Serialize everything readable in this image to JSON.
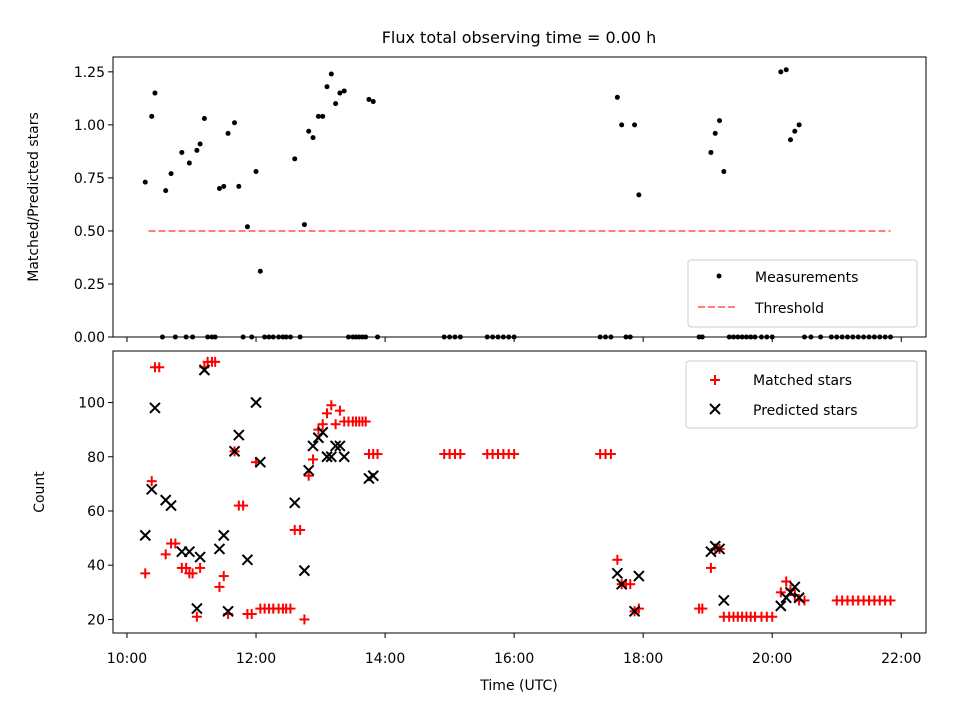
{
  "figure": {
    "title": "Flux total observing time = 0.00 h",
    "xlabel": "Time (UTC)",
    "x_tick_labels": [
      "10:00",
      "12:00",
      "14:00",
      "16:00",
      "18:00",
      "20:00",
      "22:00"
    ]
  },
  "colors": {
    "measurement": "#000000",
    "threshold": "#ff7f7f",
    "matched": "#ff0000",
    "predicted": "#000000"
  },
  "chart_data": [
    {
      "type": "scatter",
      "ylabel": "Matched/Predicted stars",
      "xlim": [
        "09:47",
        "22:23"
      ],
      "ylim": [
        0,
        1.32
      ],
      "y_ticks": [
        0.0,
        0.25,
        0.5,
        0.75,
        1.0,
        1.25
      ],
      "y_tick_labels": [
        "0.00",
        "0.25",
        "0.50",
        "0.75",
        "1.00",
        "1.25"
      ],
      "legend_position": "lower-right",
      "threshold": {
        "name": "Threshold",
        "y": 0.5,
        "x_from": "10:20",
        "x_to": "21:50"
      },
      "series": [
        {
          "name": "Measurements",
          "points": [
            [
              "10:17",
              0.73
            ],
            [
              "10:23",
              1.04
            ],
            [
              "10:26",
              1.15
            ],
            [
              "10:33",
              0.0
            ],
            [
              "10:36",
              0.69
            ],
            [
              "10:41",
              0.77
            ],
            [
              "10:45",
              0.0
            ],
            [
              "10:51",
              0.87
            ],
            [
              "10:55",
              0.0
            ],
            [
              "10:58",
              0.82
            ],
            [
              "11:01",
              0.0
            ],
            [
              "11:05",
              0.88
            ],
            [
              "11:08",
              0.91
            ],
            [
              "11:12",
              1.03
            ],
            [
              "11:15",
              0.0
            ],
            [
              "11:19",
              0.0
            ],
            [
              "11:22",
              0.0
            ],
            [
              "11:26",
              0.7
            ],
            [
              "11:30",
              0.71
            ],
            [
              "11:34",
              0.96
            ],
            [
              "11:40",
              1.01
            ],
            [
              "11:44",
              0.71
            ],
            [
              "11:48",
              0.0
            ],
            [
              "11:52",
              0.52
            ],
            [
              "11:56",
              0.0
            ],
            [
              "12:00",
              0.78
            ],
            [
              "12:04",
              0.31
            ],
            [
              "12:08",
              0.0
            ],
            [
              "12:12",
              0.0
            ],
            [
              "12:16",
              0.0
            ],
            [
              "12:21",
              0.0
            ],
            [
              "12:25",
              0.0
            ],
            [
              "12:28",
              0.0
            ],
            [
              "12:32",
              0.0
            ],
            [
              "12:36",
              0.84
            ],
            [
              "12:41",
              0.0
            ],
            [
              "12:45",
              0.53
            ],
            [
              "12:49",
              0.97
            ],
            [
              "12:53",
              0.94
            ],
            [
              "12:58",
              1.04
            ],
            [
              "13:02",
              1.04
            ],
            [
              "13:06",
              1.18
            ],
            [
              "13:10",
              1.24
            ],
            [
              "13:14",
              1.1
            ],
            [
              "13:18",
              1.15
            ],
            [
              "13:22",
              1.16
            ],
            [
              "13:26",
              0.0
            ],
            [
              "13:30",
              0.0
            ],
            [
              "13:33",
              0.0
            ],
            [
              "13:36",
              0.0
            ],
            [
              "13:39",
              0.0
            ],
            [
              "13:42",
              0.0
            ],
            [
              "13:45",
              1.12
            ],
            [
              "13:49",
              1.11
            ],
            [
              "13:53",
              0.0
            ],
            [
              "14:55",
              0.0
            ],
            [
              "15:00",
              0.0
            ],
            [
              "15:05",
              0.0
            ],
            [
              "15:10",
              0.0
            ],
            [
              "15:35",
              0.0
            ],
            [
              "15:40",
              0.0
            ],
            [
              "15:45",
              0.0
            ],
            [
              "15:50",
              0.0
            ],
            [
              "15:55",
              0.0
            ],
            [
              "16:00",
              0.0
            ],
            [
              "17:20",
              0.0
            ],
            [
              "17:25",
              0.0
            ],
            [
              "17:30",
              0.0
            ],
            [
              "17:36",
              1.13
            ],
            [
              "17:40",
              1.0
            ],
            [
              "17:44",
              0.0
            ],
            [
              "17:48",
              0.0
            ],
            [
              "17:52",
              1.0
            ],
            [
              "17:56",
              0.67
            ],
            [
              "18:52",
              0.0
            ],
            [
              "18:55",
              0.0
            ],
            [
              "19:03",
              0.87
            ],
            [
              "19:07",
              0.96
            ],
            [
              "19:11",
              1.02
            ],
            [
              "19:15",
              0.78
            ],
            [
              "19:20",
              0.0
            ],
            [
              "19:24",
              0.0
            ],
            [
              "19:28",
              0.0
            ],
            [
              "19:32",
              0.0
            ],
            [
              "19:36",
              0.0
            ],
            [
              "19:40",
              0.0
            ],
            [
              "19:44",
              0.0
            ],
            [
              "19:50",
              0.0
            ],
            [
              "19:55",
              0.0
            ],
            [
              "20:00",
              0.0
            ],
            [
              "20:08",
              1.25
            ],
            [
              "20:13",
              1.26
            ],
            [
              "20:17",
              0.93
            ],
            [
              "20:21",
              0.97
            ],
            [
              "20:25",
              1.0
            ],
            [
              "20:30",
              0.0
            ],
            [
              "20:36",
              0.0
            ],
            [
              "20:45",
              0.0
            ],
            [
              "20:55",
              0.0
            ],
            [
              "21:00",
              0.0
            ],
            [
              "21:05",
              0.0
            ],
            [
              "21:10",
              0.0
            ],
            [
              "21:15",
              0.0
            ],
            [
              "21:20",
              0.0
            ],
            [
              "21:25",
              0.0
            ],
            [
              "21:30",
              0.0
            ],
            [
              "21:35",
              0.0
            ],
            [
              "21:40",
              0.0
            ],
            [
              "21:45",
              0.0
            ],
            [
              "21:50",
              0.0
            ]
          ]
        }
      ]
    },
    {
      "type": "scatter",
      "ylabel": "Count",
      "xlim": [
        "09:47",
        "22:23"
      ],
      "ylim": [
        15,
        119
      ],
      "y_ticks": [
        20,
        40,
        60,
        80,
        100
      ],
      "y_tick_labels": [
        "20",
        "40",
        "60",
        "80",
        "100"
      ],
      "legend_position": "upper-right",
      "series": [
        {
          "name": "Matched stars",
          "marker": "plus",
          "points": [
            [
              "10:17",
              37
            ],
            [
              "10:23",
              71
            ],
            [
              "10:26",
              113
            ],
            [
              "10:30",
              113
            ],
            [
              "10:36",
              44
            ],
            [
              "10:41",
              48
            ],
            [
              "10:45",
              48
            ],
            [
              "10:51",
              39
            ],
            [
              "10:55",
              39
            ],
            [
              "10:58",
              37
            ],
            [
              "11:01",
              37
            ],
            [
              "11:05",
              21
            ],
            [
              "11:08",
              39
            ],
            [
              "11:12",
              113
            ],
            [
              "11:15",
              115
            ],
            [
              "11:19",
              115
            ],
            [
              "11:22",
              115
            ],
            [
              "11:26",
              32
            ],
            [
              "11:30",
              36
            ],
            [
              "11:34",
              22
            ],
            [
              "11:40",
              82
            ],
            [
              "11:44",
              62
            ],
            [
              "11:48",
              62
            ],
            [
              "11:52",
              22
            ],
            [
              "11:56",
              22
            ],
            [
              "12:00",
              78
            ],
            [
              "12:04",
              24
            ],
            [
              "12:08",
              24
            ],
            [
              "12:12",
              24
            ],
            [
              "12:16",
              24
            ],
            [
              "12:21",
              24
            ],
            [
              "12:25",
              24
            ],
            [
              "12:28",
              24
            ],
            [
              "12:32",
              24
            ],
            [
              "12:36",
              53
            ],
            [
              "12:41",
              53
            ],
            [
              "12:45",
              20
            ],
            [
              "12:49",
              73
            ],
            [
              "12:53",
              79
            ],
            [
              "12:58",
              90
            ],
            [
              "13:02",
              92
            ],
            [
              "13:06",
              96
            ],
            [
              "13:10",
              99
            ],
            [
              "13:14",
              92
            ],
            [
              "13:18",
              97
            ],
            [
              "13:22",
              93
            ],
            [
              "13:26",
              93
            ],
            [
              "13:30",
              93
            ],
            [
              "13:33",
              93
            ],
            [
              "13:36",
              93
            ],
            [
              "13:39",
              93
            ],
            [
              "13:42",
              93
            ],
            [
              "13:45",
              81
            ],
            [
              "13:49",
              81
            ],
            [
              "13:53",
              81
            ],
            [
              "14:55",
              81
            ],
            [
              "15:00",
              81
            ],
            [
              "15:05",
              81
            ],
            [
              "15:10",
              81
            ],
            [
              "15:35",
              81
            ],
            [
              "15:40",
              81
            ],
            [
              "15:45",
              81
            ],
            [
              "15:50",
              81
            ],
            [
              "15:55",
              81
            ],
            [
              "16:00",
              81
            ],
            [
              "17:20",
              81
            ],
            [
              "17:25",
              81
            ],
            [
              "17:30",
              81
            ],
            [
              "17:36",
              42
            ],
            [
              "17:40",
              33
            ],
            [
              "17:44",
              33
            ],
            [
              "17:48",
              33
            ],
            [
              "17:52",
              23
            ],
            [
              "17:56",
              24
            ],
            [
              "18:52",
              24
            ],
            [
              "18:55",
              24
            ],
            [
              "19:03",
              39
            ],
            [
              "19:07",
              46
            ],
            [
              "19:11",
              46
            ],
            [
              "19:15",
              21
            ],
            [
              "19:20",
              21
            ],
            [
              "19:24",
              21
            ],
            [
              "19:28",
              21
            ],
            [
              "19:32",
              21
            ],
            [
              "19:36",
              21
            ],
            [
              "19:40",
              21
            ],
            [
              "19:44",
              21
            ],
            [
              "19:50",
              21
            ],
            [
              "19:55",
              21
            ],
            [
              "20:00",
              21
            ],
            [
              "20:08",
              30
            ],
            [
              "20:13",
              34
            ],
            [
              "20:17",
              31
            ],
            [
              "20:21",
              29
            ],
            [
              "20:25",
              27
            ],
            [
              "20:30",
              27
            ],
            [
              "21:00",
              27
            ],
            [
              "21:05",
              27
            ],
            [
              "21:10",
              27
            ],
            [
              "21:15",
              27
            ],
            [
              "21:20",
              27
            ],
            [
              "21:25",
              27
            ],
            [
              "21:30",
              27
            ],
            [
              "21:35",
              27
            ],
            [
              "21:40",
              27
            ],
            [
              "21:45",
              27
            ],
            [
              "21:50",
              27
            ]
          ]
        },
        {
          "name": "Predicted stars",
          "marker": "x",
          "points": [
            [
              "10:17",
              51
            ],
            [
              "10:23",
              68
            ],
            [
              "10:26",
              98
            ],
            [
              "10:36",
              64
            ],
            [
              "10:41",
              62
            ],
            [
              "10:51",
              45
            ],
            [
              "10:58",
              45
            ],
            [
              "11:05",
              24
            ],
            [
              "11:08",
              43
            ],
            [
              "11:12",
              112
            ],
            [
              "11:26",
              46
            ],
            [
              "11:30",
              51
            ],
            [
              "11:34",
              23
            ],
            [
              "11:40",
              82
            ],
            [
              "11:44",
              88
            ],
            [
              "11:52",
              42
            ],
            [
              "12:00",
              100
            ],
            [
              "12:04",
              78
            ],
            [
              "12:36",
              63
            ],
            [
              "12:45",
              38
            ],
            [
              "12:49",
              75
            ],
            [
              "12:53",
              84
            ],
            [
              "12:58",
              87
            ],
            [
              "13:02",
              89
            ],
            [
              "13:06",
              80
            ],
            [
              "13:10",
              80
            ],
            [
              "13:14",
              84
            ],
            [
              "13:18",
              84
            ],
            [
              "13:22",
              80
            ],
            [
              "13:45",
              72
            ],
            [
              "13:49",
              73
            ],
            [
              "17:36",
              37
            ],
            [
              "17:40",
              33
            ],
            [
              "17:52",
              23
            ],
            [
              "17:56",
              36
            ],
            [
              "19:03",
              45
            ],
            [
              "19:07",
              47
            ],
            [
              "19:11",
              46
            ],
            [
              "19:15",
              27
            ],
            [
              "20:08",
              25
            ],
            [
              "20:13",
              28
            ],
            [
              "20:17",
              30
            ],
            [
              "20:21",
              32
            ],
            [
              "20:25",
              28
            ]
          ]
        }
      ]
    }
  ]
}
